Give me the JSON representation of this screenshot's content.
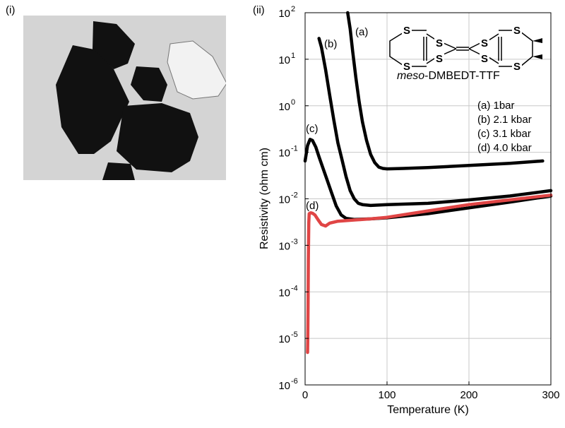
{
  "panels": {
    "left_label": "(i)",
    "right_label": "(ii)"
  },
  "photo": {
    "background": "#d4d4d4",
    "crystal_color": "#111111",
    "reflection_color": "#f2f2f2"
  },
  "molecule": {
    "name_prefix": "meso",
    "name_suffix": "-DMBEDT-TTF",
    "atom_label": "S"
  },
  "chart_data": {
    "type": "line",
    "xlabel": "Temperature (K)",
    "ylabel": "Resistivity (ohm cm)",
    "xlim": [
      0,
      300
    ],
    "ylim_log10": [
      -6,
      2
    ],
    "y_scale": "log",
    "grid": true,
    "x_ticks": [
      "0",
      "100",
      "200",
      "300"
    ],
    "y_tick_exponents": [
      "2",
      "1",
      "0",
      "-1",
      "-2",
      "-3",
      "-4",
      "-5",
      "-6"
    ],
    "y_tick_base": "10",
    "legend": [
      "(a) 1bar",
      "(b) 2.1 kbar",
      "(c) 3.1 kbar",
      "(d) 4.0 kbar"
    ],
    "legend_position": "top-right",
    "series": [
      {
        "label": "(a)",
        "color": "#000000",
        "x": [
          52,
          55,
          58,
          62,
          66,
          70,
          75,
          80,
          85,
          90,
          95,
          100,
          120,
          150,
          200,
          250,
          290
        ],
        "y": [
          100,
          45,
          15,
          4,
          1.2,
          0.45,
          0.18,
          0.09,
          0.06,
          0.048,
          0.045,
          0.044,
          0.045,
          0.047,
          0.052,
          0.058,
          0.065
        ]
      },
      {
        "label": "(b)",
        "color": "#000000",
        "x": [
          17,
          20,
          25,
          30,
          35,
          40,
          45,
          50,
          55,
          60,
          65,
          70,
          80,
          100,
          150,
          200,
          250,
          300
        ],
        "y": [
          28,
          18,
          6,
          1.7,
          0.5,
          0.16,
          0.07,
          0.03,
          0.015,
          0.01,
          0.008,
          0.0075,
          0.0072,
          0.0075,
          0.008,
          0.0095,
          0.0115,
          0.015
        ]
      },
      {
        "label": "(c)",
        "color": "#000000",
        "x": [
          0,
          3,
          6,
          9,
          13,
          17,
          21,
          26,
          32,
          38,
          44,
          50,
          60,
          80,
          100,
          150,
          200,
          250,
          300
        ],
        "y": [
          0.065,
          0.14,
          0.19,
          0.18,
          0.13,
          0.08,
          0.05,
          0.028,
          0.014,
          0.007,
          0.0045,
          0.0038,
          0.0036,
          0.0037,
          0.0039,
          0.0048,
          0.0064,
          0.0085,
          0.0115
        ]
      },
      {
        "label": "(d)",
        "color": "#e04545",
        "x": [
          3,
          3.3,
          3.6,
          4,
          4.5,
          5,
          7,
          9,
          12,
          16,
          20,
          25,
          30,
          40,
          50,
          60,
          80,
          100,
          150,
          200,
          250,
          300
        ],
        "y": [
          5e-06,
          1e-05,
          5e-05,
          0.0005,
          0.003,
          0.0048,
          0.005,
          0.0049,
          0.0045,
          0.0035,
          0.0028,
          0.0026,
          0.003,
          0.0033,
          0.0034,
          0.0035,
          0.0037,
          0.004,
          0.0055,
          0.0075,
          0.0095,
          0.012
        ]
      }
    ]
  }
}
